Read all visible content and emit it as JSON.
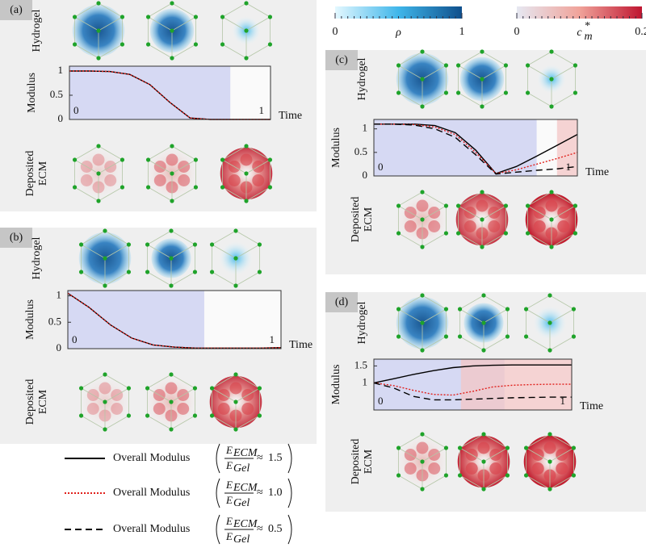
{
  "chart_data": [
    {
      "type": "line",
      "label": "(a)",
      "top_row_label": "Hydrogel",
      "bottom_row_label": [
        "Deposited",
        "ECM"
      ],
      "y_label": "Modulus",
      "x_label": "Time",
      "x": [
        0,
        0.1,
        0.2,
        0.3,
        0.4,
        0.5,
        0.6,
        0.7,
        0.8,
        0.9,
        1
      ],
      "xlim": [
        0,
        1
      ],
      "xticks": [
        0,
        1
      ],
      "ylim": [
        0,
        1.1
      ],
      "yticks": [
        0,
        0.5,
        1
      ],
      "regions": [
        {
          "from": 0,
          "to": 0.8,
          "color": "#c9cdf0"
        }
      ],
      "series": [
        {
          "color": "#000000",
          "dash": "solid",
          "values": [
            1,
            1,
            0.99,
            0.93,
            0.72,
            0.35,
            0.03,
            0,
            0,
            0,
            0
          ]
        },
        {
          "color": "#e0201b",
          "dash": "dotted",
          "values": [
            1,
            1,
            0.99,
            0.93,
            0.72,
            0.35,
            0.03,
            0,
            0,
            0,
            0
          ]
        }
      ]
    },
    {
      "type": "line",
      "label": "(b)",
      "top_row_label": "Hydrogel",
      "bottom_row_label": [
        "Deposited",
        "ECM"
      ],
      "y_label": "Modulus",
      "x_label": "Time",
      "x": [
        0,
        0.1,
        0.2,
        0.3,
        0.4,
        0.5,
        0.6,
        0.7,
        0.8,
        0.9,
        1
      ],
      "xlim": [
        0,
        1
      ],
      "xticks": [
        0,
        1
      ],
      "ylim": [
        0,
        1.1
      ],
      "yticks": [
        0,
        0.5,
        1
      ],
      "regions": [
        {
          "from": 0,
          "to": 0.64,
          "color": "#c9cdf0"
        }
      ],
      "series": [
        {
          "color": "#000000",
          "dash": "solid",
          "values": [
            1.05,
            0.78,
            0.45,
            0.2,
            0.07,
            0.03,
            0.01,
            0.01,
            0.01,
            0.01,
            0.02
          ]
        },
        {
          "color": "#e0201b",
          "dash": "dotted",
          "values": [
            1.05,
            0.78,
            0.45,
            0.2,
            0.07,
            0.03,
            0.01,
            0.01,
            0.01,
            0.01,
            0.02
          ]
        }
      ]
    },
    {
      "type": "line",
      "label": "(c)",
      "top_row_label": "Hydrogel",
      "bottom_row_label": [
        "Deposited",
        "ECM"
      ],
      "y_label": "Modulus",
      "x_label": "Time",
      "x": [
        0,
        0.1,
        0.2,
        0.3,
        0.4,
        0.5,
        0.6,
        0.7,
        0.8,
        0.9,
        1
      ],
      "xlim": [
        0,
        1
      ],
      "xticks": [
        0,
        1
      ],
      "ylim": [
        0,
        1.2
      ],
      "yticks": [
        0,
        0.5,
        1
      ],
      "regions": [
        {
          "from": 0,
          "to": 0.8,
          "color": "#c9cdf0"
        },
        {
          "from": 0.9,
          "to": 1,
          "color": "#f3c6c6"
        }
      ],
      "series": [
        {
          "color": "#000000",
          "dash": "solid",
          "values": [
            1.1,
            1.1,
            1.1,
            1.07,
            0.92,
            0.55,
            0.05,
            0.2,
            0.42,
            0.65,
            0.88
          ]
        },
        {
          "color": "#e0201b",
          "dash": "dotted",
          "values": [
            1.1,
            1.1,
            1.09,
            1.04,
            0.88,
            0.5,
            0.05,
            0.13,
            0.25,
            0.37,
            0.5
          ]
        },
        {
          "color": "#000000",
          "dash": "dashed",
          "values": [
            1.1,
            1.1,
            1.08,
            1.0,
            0.82,
            0.45,
            0.04,
            0.08,
            0.12,
            0.15,
            0.2
          ]
        }
      ]
    },
    {
      "type": "line",
      "label": "(d)",
      "top_row_label": "Hydrogel",
      "bottom_row_label": [
        "Deposited",
        "ECM"
      ],
      "y_label": "Modulus",
      "x_label": "Time",
      "x": [
        0,
        0.1,
        0.2,
        0.3,
        0.4,
        0.5,
        0.6,
        0.7,
        0.8,
        0.9,
        1
      ],
      "xlim": [
        0,
        1
      ],
      "xticks": [
        0,
        1
      ],
      "ylim": [
        0.2,
        1.7
      ],
      "yticks": [
        1,
        1.5
      ],
      "regions": [
        {
          "from": 0,
          "to": 0.66,
          "color": "#c9cdf0"
        },
        {
          "from": 0.44,
          "to": 1,
          "color": "#f3c6c6"
        }
      ],
      "series": [
        {
          "color": "#000000",
          "dash": "solid",
          "values": [
            1.0,
            1.12,
            1.25,
            1.36,
            1.45,
            1.5,
            1.52,
            1.53,
            1.53,
            1.53,
            1.53
          ]
        },
        {
          "color": "#e0201b",
          "dash": "dotted",
          "values": [
            1.0,
            0.92,
            0.78,
            0.66,
            0.64,
            0.75,
            0.88,
            0.93,
            0.95,
            0.96,
            0.96
          ]
        },
        {
          "color": "#000000",
          "dash": "dashed",
          "values": [
            1.0,
            0.85,
            0.6,
            0.5,
            0.5,
            0.52,
            0.54,
            0.56,
            0.57,
            0.58,
            0.58
          ]
        }
      ]
    }
  ],
  "colorbars": [
    {
      "label": "ρ",
      "lim": [
        0,
        1
      ],
      "ticks": [
        0,
        1
      ],
      "colors": [
        "#e4f8ff",
        "#3fb6ea",
        "#0f4f8c"
      ]
    },
    {
      "label": "c",
      "label_sup": "*",
      "label_sub": "m",
      "lim": [
        0,
        0.2
      ],
      "ticks": [
        0,
        0.2
      ],
      "colors": [
        "#e6e8f2",
        "#f0a39a",
        "#bf1530"
      ]
    }
  ],
  "legend": [
    {
      "name": "Overall Modulus",
      "color": "#000000",
      "dash": "solid",
      "numerator": "E",
      "numerator_sub": "ECM",
      "denominator": "E",
      "denominator_sub": "Gel",
      "relation": "≈",
      "ratio": {
        "value": 1.5,
        "label": "1.5"
      }
    },
    {
      "name": "Overall Modulus",
      "color": "#e0201b",
      "dash": "dotted",
      "numerator": "E",
      "numerator_sub": "ECM",
      "denominator": "E",
      "denominator_sub": "Gel",
      "relation": "≈",
      "ratio": {
        "value": 1.0,
        "label": "1.0"
      }
    },
    {
      "name": "Overall Modulus",
      "color": "#000000",
      "dash": "dashed",
      "numerator": "E",
      "numerator_sub": "ECM",
      "denominator": "E",
      "denominator_sub": "Gel",
      "relation": "≈",
      "ratio": {
        "value": 0.5,
        "label": "0.5"
      }
    }
  ]
}
